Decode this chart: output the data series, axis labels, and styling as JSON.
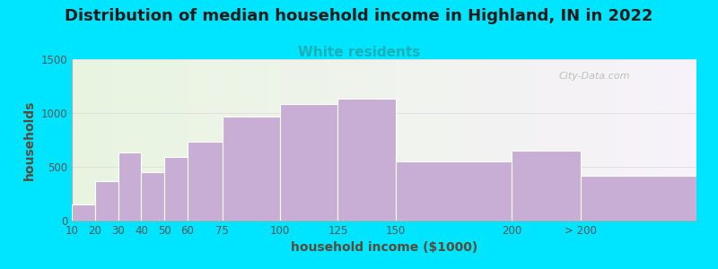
{
  "title": "Distribution of median household income in Highland, IN in 2022",
  "subtitle": "White residents",
  "xlabel": "household income ($1000)",
  "ylabel": "households",
  "bar_color": "#c8aed4",
  "bar_edgecolor": "#ffffff",
  "background_outer": "#00e5ff",
  "background_inner_left": "#e8f5e0",
  "background_inner_right": "#f5eef8",
  "edges": [
    10,
    20,
    30,
    40,
    50,
    60,
    75,
    100,
    125,
    150,
    200,
    230,
    280
  ],
  "values": [
    150,
    370,
    630,
    450,
    590,
    730,
    970,
    1080,
    1130,
    550,
    650,
    420
  ],
  "tick_positions": [
    10,
    20,
    30,
    40,
    50,
    60,
    75,
    100,
    125,
    150,
    200,
    230
  ],
  "tick_labels": [
    "10",
    "20",
    "30",
    "40",
    "50",
    "60",
    "75",
    "100",
    "125",
    "150",
    "200",
    "> 200"
  ],
  "ylim": [
    0,
    1500
  ],
  "yticks": [
    0,
    500,
    1000,
    1500
  ],
  "title_fontsize": 13,
  "subtitle_fontsize": 11,
  "subtitle_color": "#1ab0b8",
  "axis_label_fontsize": 10,
  "tick_fontsize": 8.5,
  "watermark_text": "City-Data.com",
  "watermark_color": "#b0b8b0"
}
